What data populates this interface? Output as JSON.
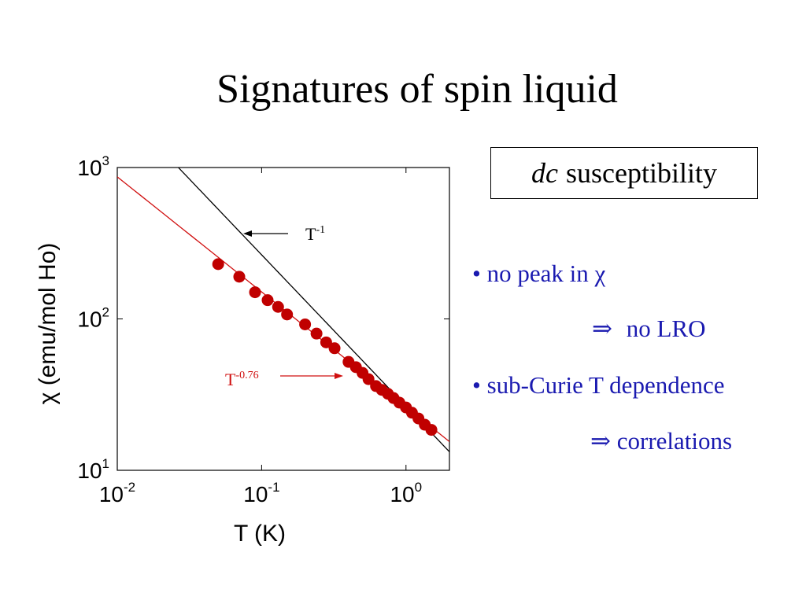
{
  "slide": {
    "title": "Signatures of spin liquid"
  },
  "info_box": {
    "italic": "dc",
    "text": "susceptibility"
  },
  "bullets": [
    {
      "marker": "•",
      "text": "no peak in χ",
      "implies": false
    },
    {
      "marker": "⇒",
      "text": "no LRO",
      "implies": true
    },
    {
      "marker": "•",
      "text": "sub-Curie T dependence",
      "implies": false
    },
    {
      "marker": "⇒",
      "text": "correlations",
      "implies": true
    }
  ],
  "colors": {
    "text": "#000000",
    "bullet_text": "#1a1ab0",
    "data_points": "#c00000",
    "fit_line": "#d01010",
    "annotation_red": "#d01010",
    "reference_line": "#000000"
  },
  "chart_data": {
    "type": "scatter",
    "x_scale": "log",
    "y_scale": "log",
    "xlim": [
      0.01,
      2
    ],
    "ylim": [
      10,
      1000
    ],
    "xlabel": "T (K)",
    "ylabel": "χ (emu/mol Ho)",
    "x_ticks": [
      {
        "value": 0.01,
        "base": "10",
        "exp": "-2"
      },
      {
        "value": 0.1,
        "base": "10",
        "exp": "-1"
      },
      {
        "value": 1,
        "base": "10",
        "exp": "0"
      }
    ],
    "y_ticks": [
      {
        "value": 10,
        "base": "10",
        "exp": "1"
      },
      {
        "value": 100,
        "base": "10",
        "exp": "2"
      },
      {
        "value": 1000,
        "base": "10",
        "exp": "3"
      }
    ],
    "series": [
      {
        "style": "points",
        "color": "#c00000",
        "x": [
          0.05,
          0.07,
          0.09,
          0.11,
          0.13,
          0.15,
          0.2,
          0.24,
          0.28,
          0.32,
          0.4,
          0.45,
          0.5,
          0.55,
          0.62,
          0.68,
          0.75,
          0.82,
          0.9,
          1.0,
          1.1,
          1.22,
          1.35,
          1.5
        ],
        "y": [
          230,
          190,
          150,
          133,
          120,
          107,
          92,
          80,
          70,
          64,
          52,
          48,
          44,
          40,
          36,
          34,
          32,
          30,
          28,
          26,
          24,
          22,
          20,
          18.5
        ]
      },
      {
        "label": "T-0.76",
        "style": "line",
        "color": "#d01010",
        "power_law": {
          "prefactor": 26.2,
          "exponent": -0.76
        },
        "x_range": [
          0.01,
          2
        ]
      },
      {
        "label": "T-1",
        "style": "line",
        "color": "#000000",
        "power_law": {
          "prefactor": 26.5,
          "exponent": -1
        },
        "x_range": [
          0.0163,
          2
        ]
      }
    ],
    "annotations": [
      {
        "base": "T",
        "exp": "-1",
        "color": "#000000",
        "arrow": "left",
        "target_series": "T-1"
      },
      {
        "base": "T",
        "exp": "-0.76",
        "color": "#d01010",
        "arrow": "right",
        "target_series": "T-0.76"
      }
    ]
  }
}
